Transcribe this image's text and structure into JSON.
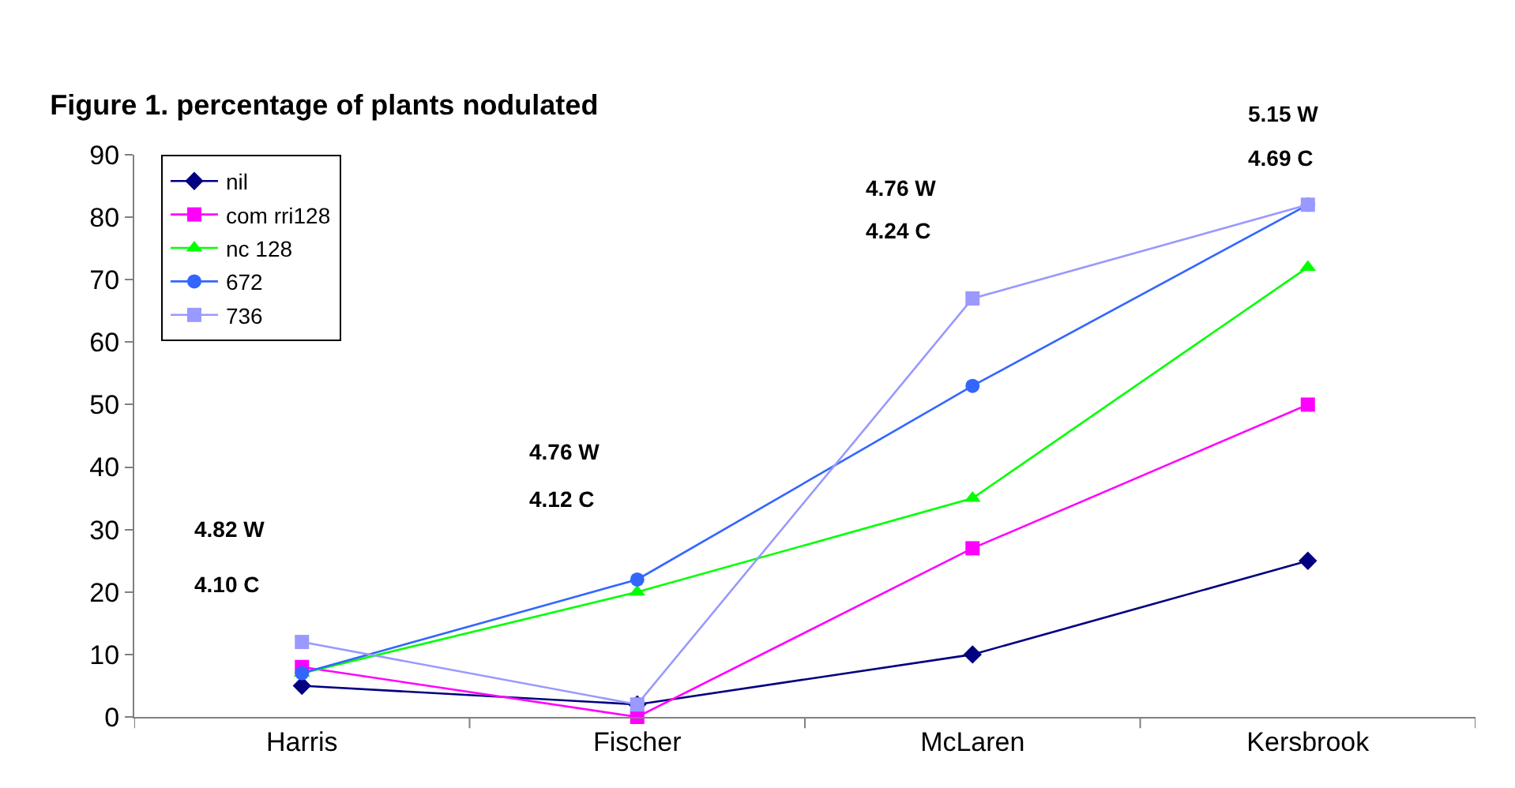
{
  "chart_data": {
    "type": "line",
    "title": "Figure 1. percentage of plants nodulated",
    "categories": [
      "Harris",
      "Fischer",
      "McLaren",
      "Kersbrook"
    ],
    "series": [
      {
        "name": "nil",
        "color": "#000080",
        "marker": "diamond",
        "values": [
          5,
          2,
          10,
          25
        ]
      },
      {
        "name": "com rri128",
        "color": "#ff00ff",
        "marker": "square",
        "values": [
          8,
          0,
          27,
          50
        ]
      },
      {
        "name": "nc 128",
        "color": "#00ff00",
        "marker": "triangle",
        "values": [
          7,
          20,
          35,
          72
        ]
      },
      {
        "name": "672",
        "color": "#3366ff",
        "marker": "circle",
        "values": [
          7,
          22,
          53,
          82
        ]
      },
      {
        "name": "736",
        "color": "#9999ff",
        "marker": "square",
        "values": [
          12,
          2,
          67,
          82
        ]
      }
    ],
    "ylim": [
      0,
      90
    ],
    "yticks": [
      0,
      10,
      20,
      30,
      40,
      50,
      60,
      70,
      80,
      90
    ],
    "legend": "top left",
    "annotations": [
      "4.82 W",
      "4.10 C",
      "4.76 W",
      "4.12 C",
      "4.76 W",
      "4.24 C",
      "5.15 W",
      "4.69 C"
    ]
  }
}
